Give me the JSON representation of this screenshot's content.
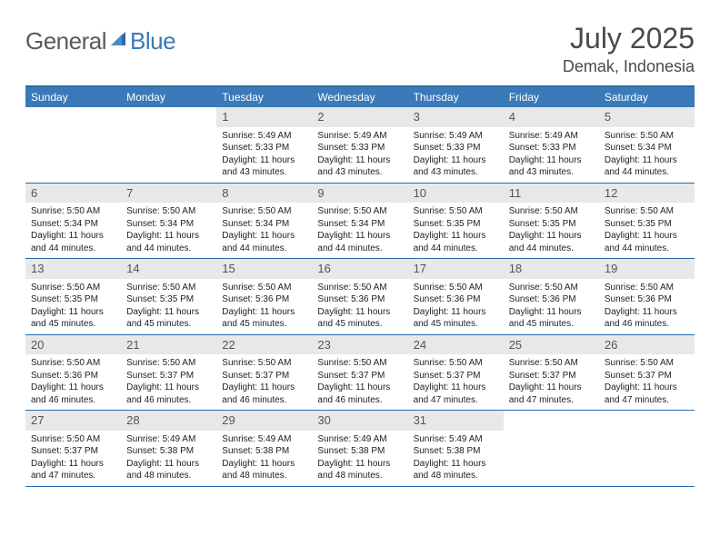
{
  "logo": {
    "text1": "General",
    "text2": "Blue"
  },
  "title": "July 2025",
  "location": "Demak, Indonesia",
  "colors": {
    "header_bg": "#3a7ab8",
    "border": "#2a6aa8",
    "daynum_bg": "#e8e8e8",
    "text_dark": "#222222",
    "text_muted": "#555555",
    "logo_gray": "#5a5a5a",
    "logo_blue": "#3a7ab8"
  },
  "weekdays": [
    "Sunday",
    "Monday",
    "Tuesday",
    "Wednesday",
    "Thursday",
    "Friday",
    "Saturday"
  ],
  "weeks": [
    [
      null,
      null,
      {
        "n": "1",
        "sunrise": "5:49 AM",
        "sunset": "5:33 PM",
        "daylight": "11 hours and 43 minutes."
      },
      {
        "n": "2",
        "sunrise": "5:49 AM",
        "sunset": "5:33 PM",
        "daylight": "11 hours and 43 minutes."
      },
      {
        "n": "3",
        "sunrise": "5:49 AM",
        "sunset": "5:33 PM",
        "daylight": "11 hours and 43 minutes."
      },
      {
        "n": "4",
        "sunrise": "5:49 AM",
        "sunset": "5:33 PM",
        "daylight": "11 hours and 43 minutes."
      },
      {
        "n": "5",
        "sunrise": "5:50 AM",
        "sunset": "5:34 PM",
        "daylight": "11 hours and 44 minutes."
      }
    ],
    [
      {
        "n": "6",
        "sunrise": "5:50 AM",
        "sunset": "5:34 PM",
        "daylight": "11 hours and 44 minutes."
      },
      {
        "n": "7",
        "sunrise": "5:50 AM",
        "sunset": "5:34 PM",
        "daylight": "11 hours and 44 minutes."
      },
      {
        "n": "8",
        "sunrise": "5:50 AM",
        "sunset": "5:34 PM",
        "daylight": "11 hours and 44 minutes."
      },
      {
        "n": "9",
        "sunrise": "5:50 AM",
        "sunset": "5:34 PM",
        "daylight": "11 hours and 44 minutes."
      },
      {
        "n": "10",
        "sunrise": "5:50 AM",
        "sunset": "5:35 PM",
        "daylight": "11 hours and 44 minutes."
      },
      {
        "n": "11",
        "sunrise": "5:50 AM",
        "sunset": "5:35 PM",
        "daylight": "11 hours and 44 minutes."
      },
      {
        "n": "12",
        "sunrise": "5:50 AM",
        "sunset": "5:35 PM",
        "daylight": "11 hours and 44 minutes."
      }
    ],
    [
      {
        "n": "13",
        "sunrise": "5:50 AM",
        "sunset": "5:35 PM",
        "daylight": "11 hours and 45 minutes."
      },
      {
        "n": "14",
        "sunrise": "5:50 AM",
        "sunset": "5:35 PM",
        "daylight": "11 hours and 45 minutes."
      },
      {
        "n": "15",
        "sunrise": "5:50 AM",
        "sunset": "5:36 PM",
        "daylight": "11 hours and 45 minutes."
      },
      {
        "n": "16",
        "sunrise": "5:50 AM",
        "sunset": "5:36 PM",
        "daylight": "11 hours and 45 minutes."
      },
      {
        "n": "17",
        "sunrise": "5:50 AM",
        "sunset": "5:36 PM",
        "daylight": "11 hours and 45 minutes."
      },
      {
        "n": "18",
        "sunrise": "5:50 AM",
        "sunset": "5:36 PM",
        "daylight": "11 hours and 45 minutes."
      },
      {
        "n": "19",
        "sunrise": "5:50 AM",
        "sunset": "5:36 PM",
        "daylight": "11 hours and 46 minutes."
      }
    ],
    [
      {
        "n": "20",
        "sunrise": "5:50 AM",
        "sunset": "5:36 PM",
        "daylight": "11 hours and 46 minutes."
      },
      {
        "n": "21",
        "sunrise": "5:50 AM",
        "sunset": "5:37 PM",
        "daylight": "11 hours and 46 minutes."
      },
      {
        "n": "22",
        "sunrise": "5:50 AM",
        "sunset": "5:37 PM",
        "daylight": "11 hours and 46 minutes."
      },
      {
        "n": "23",
        "sunrise": "5:50 AM",
        "sunset": "5:37 PM",
        "daylight": "11 hours and 46 minutes."
      },
      {
        "n": "24",
        "sunrise": "5:50 AM",
        "sunset": "5:37 PM",
        "daylight": "11 hours and 47 minutes."
      },
      {
        "n": "25",
        "sunrise": "5:50 AM",
        "sunset": "5:37 PM",
        "daylight": "11 hours and 47 minutes."
      },
      {
        "n": "26",
        "sunrise": "5:50 AM",
        "sunset": "5:37 PM",
        "daylight": "11 hours and 47 minutes."
      }
    ],
    [
      {
        "n": "27",
        "sunrise": "5:50 AM",
        "sunset": "5:37 PM",
        "daylight": "11 hours and 47 minutes."
      },
      {
        "n": "28",
        "sunrise": "5:49 AM",
        "sunset": "5:38 PM",
        "daylight": "11 hours and 48 minutes."
      },
      {
        "n": "29",
        "sunrise": "5:49 AM",
        "sunset": "5:38 PM",
        "daylight": "11 hours and 48 minutes."
      },
      {
        "n": "30",
        "sunrise": "5:49 AM",
        "sunset": "5:38 PM",
        "daylight": "11 hours and 48 minutes."
      },
      {
        "n": "31",
        "sunrise": "5:49 AM",
        "sunset": "5:38 PM",
        "daylight": "11 hours and 48 minutes."
      },
      null,
      null
    ]
  ],
  "labels": {
    "sunrise": "Sunrise:",
    "sunset": "Sunset:",
    "daylight": "Daylight:"
  }
}
